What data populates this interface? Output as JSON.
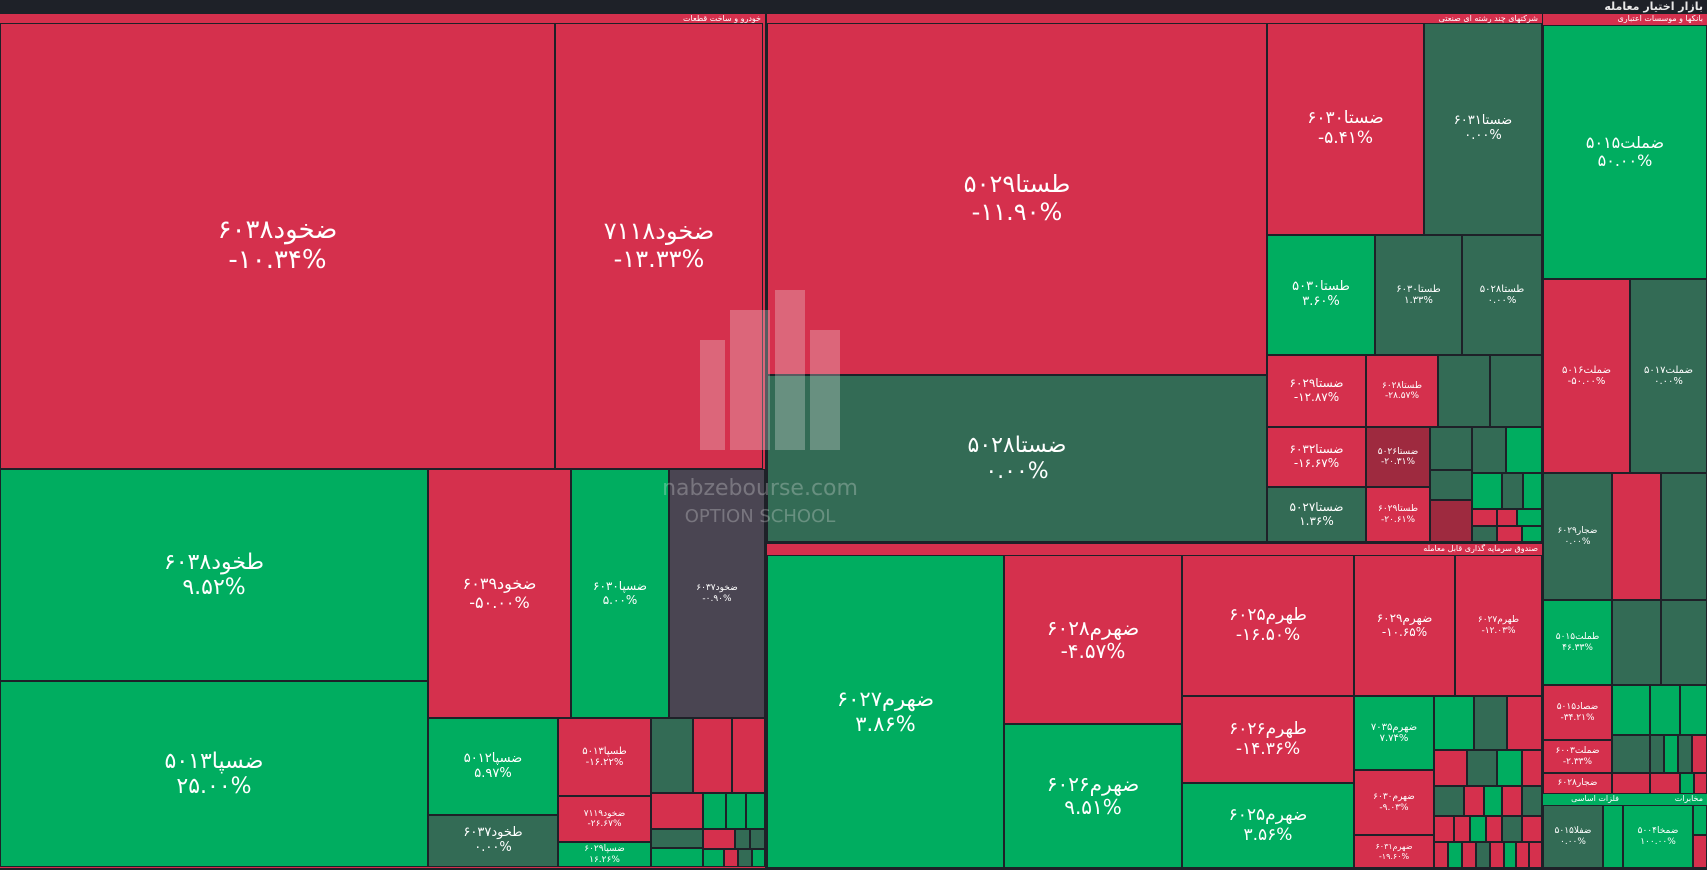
{
  "header": {
    "title": "بازار اختیار معامله"
  },
  "sectors": [
    {
      "id": "auto",
      "title": "خودرو و ساخت قطعات"
    },
    {
      "id": "conglom",
      "title": "شرکتهای چند رشته ای صنعتی"
    },
    {
      "id": "banks",
      "title": "بانکها و موسسات اعتباری"
    },
    {
      "id": "etf",
      "title": "صندوق سرمایه گذاری قابل معامله"
    },
    {
      "id": "metals",
      "title": "فلزات اساسی"
    },
    {
      "id": "telecom",
      "title": "مخابرات"
    }
  ],
  "tiles": [
    {
      "name": "ضخود۶۰۳۸",
      "change": "-۱۰.۳۴%"
    },
    {
      "name": "ضخود۷۱۱۸",
      "change": "-۱۳.۳۳%"
    },
    {
      "name": "طخود۶۰۳۸",
      "change": "۹.۵۲%"
    },
    {
      "name": "ضسپا۵۰۱۳",
      "change": "۲۵.۰۰%"
    },
    {
      "name": "ضخود۶۰۳۹",
      "change": "-۵۰.۰۰%"
    },
    {
      "name": "ضسپا۶۰۳۰",
      "change": "۵.۰۰%"
    },
    {
      "name": "ضخود۶۰۳۷",
      "change": "-۰.۹۰%"
    },
    {
      "name": "ضسپا۵۰۱۲",
      "change": "۵.۹۷%"
    },
    {
      "name": "طخود۶۰۳۷",
      "change": "۰.۰۰%"
    },
    {
      "name": "طسپا۵۰۱۳",
      "change": "-۱۶.۲۲%"
    },
    {
      "name": "ضخود۷۱۱۹",
      "change": "-۲۶.۶۷%"
    },
    {
      "name": "ضسپا۶۰۲۹",
      "change": "۱۶.۲۶%"
    },
    {
      "name": "طستا۵۰۲۹",
      "change": "-۱۱.۹۰%"
    },
    {
      "name": "ضستا۵۰۲۸",
      "change": "۰.۰۰%"
    },
    {
      "name": "ضستا۶۰۳۰",
      "change": "-۵.۴۱%"
    },
    {
      "name": "ضستا۶۰۳۱",
      "change": "۰.۰۰%"
    },
    {
      "name": "طستا۵۰۳۰",
      "change": "۳.۶۰%"
    },
    {
      "name": "طستا۶۰۳۰",
      "change": "۱.۳۳%"
    },
    {
      "name": "طستا۵۰۲۸",
      "change": "۰.۰۰%"
    },
    {
      "name": "ضستا۶۰۲۹",
      "change": "-۱۲.۸۷%"
    },
    {
      "name": "ضستا۶۰۳۲",
      "change": "-۱۶.۶۷%"
    },
    {
      "name": "ضستا۵۰۲۷",
      "change": "۱.۳۶%"
    },
    {
      "name": "طستا۶۰۲۸",
      "change": "-۲۸.۵۷%"
    },
    {
      "name": "ضستا۵۰۲۶",
      "change": "-۲۰.۳۱%"
    },
    {
      "name": "طستا۶۰۲۹",
      "change": "-۲۰.۶۱%"
    },
    {
      "name": "ضهرم۶۰۲۷",
      "change": "۳.۸۶%"
    },
    {
      "name": "ضهرم۶۰۲۸",
      "change": "-۴.۵۷%"
    },
    {
      "name": "ضهرم۶۰۲۶",
      "change": "۹.۵۱%"
    },
    {
      "name": "طهرم۶۰۲۵",
      "change": "-۱۶.۵۰%"
    },
    {
      "name": "طهرم۶۰۲۶",
      "change": "-۱۴.۳۶%"
    },
    {
      "name": "ضهرم۶۰۲۵",
      "change": "۳.۵۶%"
    },
    {
      "name": "ضهرم۶۰۲۹",
      "change": "-۱۰.۶۵%"
    },
    {
      "name": "طهرم۶۰۲۷",
      "change": "-۱۲.۰۳%"
    },
    {
      "name": "ضهرم۷۰۳۵",
      "change": "۷.۷۴%"
    },
    {
      "name": "ضهرم۶۰۳۰",
      "change": "-۹.۰۳%"
    },
    {
      "name": "ضهرم۶۰۳۱",
      "change": "-۱۹.۶۰%"
    },
    {
      "name": "ضملت۵۰۱۵",
      "change": "۵۰.۰۰%"
    },
    {
      "name": "ضملت۵۰۱۶",
      "change": "-۵۰.۰۰%"
    },
    {
      "name": "ضملت۵۰۱۷",
      "change": "۰.۰۰%"
    },
    {
      "name": "ضجار۶۰۲۹",
      "change": "۰.۰۰%"
    },
    {
      "name": "طملت۵۰۱۵",
      "change": "۴۶.۳۳%"
    },
    {
      "name": "ضصاد۵۰۱۵",
      "change": "-۳۴.۲۱%"
    },
    {
      "name": "ضملت۶۰۰۳",
      "change": "-۲.۳۳%"
    },
    {
      "name": "ضجار۶۰۲۸",
      "change": ""
    },
    {
      "name": "ضفلا۵۰۱۵",
      "change": "۰.۰۰%"
    },
    {
      "name": "ضمخا۵۰۰۴",
      "change": "۱۰۰.۰۰%"
    }
  ],
  "watermark": {
    "site": "nabzebourse.com",
    "school": "OPTION SCHOOL"
  }
}
